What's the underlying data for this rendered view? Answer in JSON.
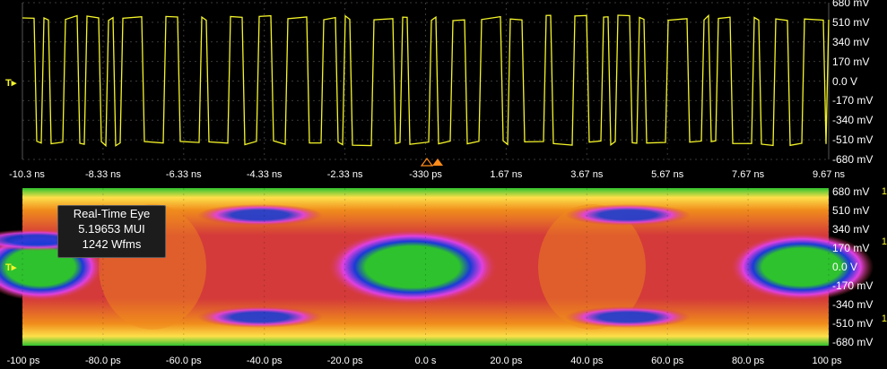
{
  "colors": {
    "trace": "#f5f52a",
    "background": "#000000",
    "grid": "#3a3a3a",
    "eye_green": "#2ec22e",
    "eye_blue": "#1a3ad6",
    "eye_magenta": "#e040e0",
    "eye_red": "#d43a3a",
    "eye_orange": "#f08c1c",
    "eye_yellow": "#fde04a",
    "trigger_orange": "#ff8c1a"
  },
  "waveform": {
    "y_labels": [
      "680 mV",
      "510 mV",
      "340 mV",
      "170 mV",
      "0.0 V",
      "-170 mV",
      "-340 mV",
      "-510 mV",
      "-680 mV"
    ],
    "x_labels": [
      "-10.3 ns",
      "-8.33 ns",
      "-6.33 ns",
      "-4.33 ns",
      "-2.33 ns",
      "-330 ps",
      "1.67 ns",
      "3.67 ns",
      "5.67 ns",
      "7.67 ns",
      "9.67 ns"
    ],
    "trigger_marker": "T"
  },
  "eye": {
    "y_labels": [
      "680 mV",
      "510 mV",
      "340 mV",
      "170 mV",
      "0.0 V",
      "-170 mV",
      "-340 mV",
      "-510 mV",
      "-680 mV"
    ],
    "x_labels": [
      "-100 ps",
      "-80.0 ps",
      "-60.0 ps",
      "-40.0 ps",
      "-20.0 ps",
      "0.0 s",
      "20.0 ps",
      "40.0 ps",
      "60.0 ps",
      "80.0 ps",
      "100 ps"
    ],
    "info_title": "Real-Time Eye",
    "info_ui": "5.19653 MUI",
    "info_wfms": "1242 Wfms",
    "edge_label_top": "1",
    "edge_label_mid": "1",
    "edge_label_bottom": "1"
  }
}
